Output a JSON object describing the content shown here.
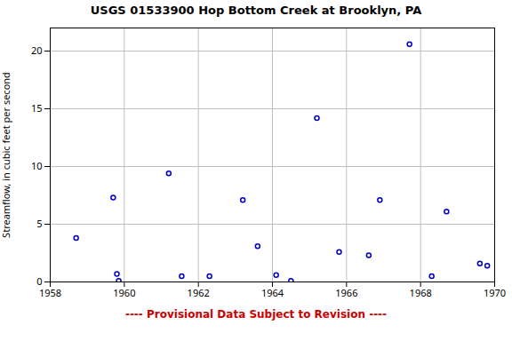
{
  "chart_data": {
    "type": "scatter",
    "title": "USGS 01533900 Hop Bottom Creek at Brooklyn, PA",
    "ylabel": "Streamflow, in cubic feet per second",
    "x": [
      1958.7,
      1959.7,
      1959.8,
      1959.85,
      1961.2,
      1961.55,
      1962.3,
      1963.2,
      1963.6,
      1964.1,
      1964.5,
      1965.2,
      1965.8,
      1966.6,
      1966.9,
      1967.7,
      1968.3,
      1968.7,
      1969.6,
      1969.8
    ],
    "values": [
      3.8,
      7.3,
      0.7,
      0.1,
      9.4,
      0.5,
      0.5,
      7.1,
      3.1,
      0.6,
      0.1,
      14.2,
      2.6,
      2.3,
      7.1,
      20.6,
      0.5,
      6.1,
      1.6,
      1.4
    ],
    "color": "#0000CC",
    "marker": "circle",
    "xlim": [
      1958,
      1970
    ],
    "xticks": [
      1958,
      1960,
      1962,
      1964,
      1966,
      1968,
      1970
    ],
    "ylim": [
      0,
      22
    ],
    "yticks": [
      0,
      5,
      10,
      15,
      20
    ],
    "grid": true,
    "annotations": [
      {
        "text": "---- Provisional Data Subject to Revision ----",
        "color": "#cc0000"
      }
    ]
  }
}
